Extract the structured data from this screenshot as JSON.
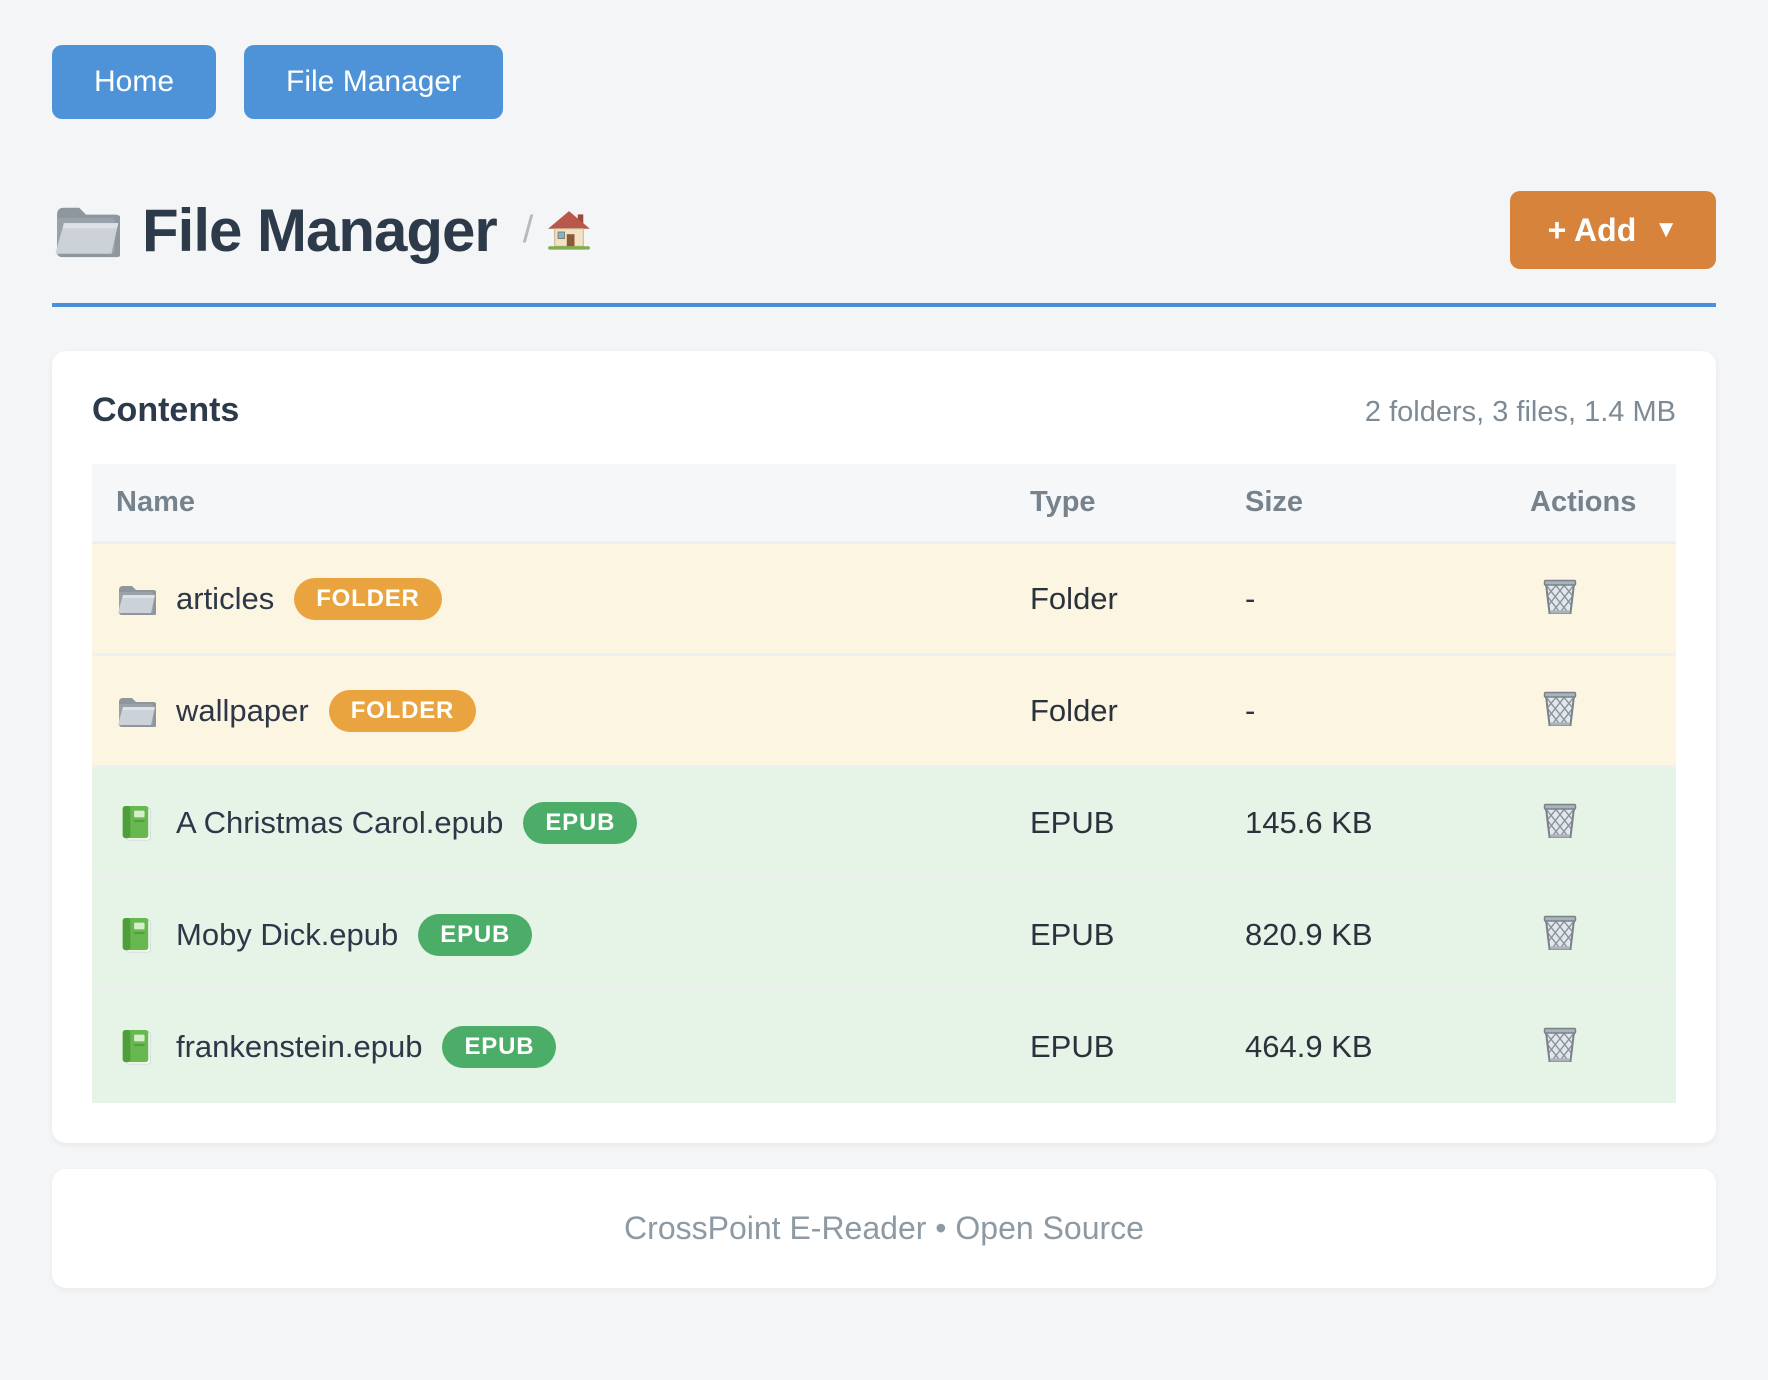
{
  "nav": {
    "buttons": [
      {
        "label": "Home"
      },
      {
        "label": "File Manager"
      }
    ]
  },
  "header": {
    "title": "File Manager",
    "breadcrumb": {
      "separator": "/",
      "home_icon": "house-icon"
    },
    "add_button": {
      "label": "+ Add",
      "caret": "▼"
    }
  },
  "contents": {
    "title": "Contents",
    "summary": "2 folders, 3 files, 1.4 MB",
    "table": {
      "headers": [
        "Name",
        "Type",
        "Size",
        "Actions"
      ],
      "rows": [
        {
          "name": "articles",
          "badge": "FOLDER",
          "type": "Folder",
          "size": "-",
          "icon": "folder",
          "kind": "folder"
        },
        {
          "name": "wallpaper",
          "badge": "FOLDER",
          "type": "Folder",
          "size": "-",
          "icon": "folder",
          "kind": "folder"
        },
        {
          "name": "A Christmas Carol.epub",
          "badge": "EPUB",
          "type": "EPUB",
          "size": "145.6 KB",
          "icon": "book",
          "kind": "epub"
        },
        {
          "name": "Moby Dick.epub",
          "badge": "EPUB",
          "type": "EPUB",
          "size": "820.9 KB",
          "icon": "book",
          "kind": "epub"
        },
        {
          "name": "frankenstein.epub",
          "badge": "EPUB",
          "type": "EPUB",
          "size": "464.9 KB",
          "icon": "book",
          "kind": "epub"
        }
      ]
    }
  },
  "footer": {
    "text": "CrossPoint E-Reader • Open Source"
  },
  "icons": {
    "heading": "folder-icon",
    "breadcrumb": "house-icon",
    "folder_rows": "folder-icon",
    "epub_rows": "green-book-icon",
    "actions": "trash-icon"
  },
  "colors": {
    "page_bg": "#f4f5f6",
    "nav_blue": "#4e93d7",
    "header_underline": "#4a90d9",
    "add_orange": "#d8833c",
    "folder_badge": "#e9a440",
    "epub_badge": "#4cad68",
    "folder_row_bg": "#fcf5e2",
    "epub_row_bg": "#e6f3e7"
  }
}
